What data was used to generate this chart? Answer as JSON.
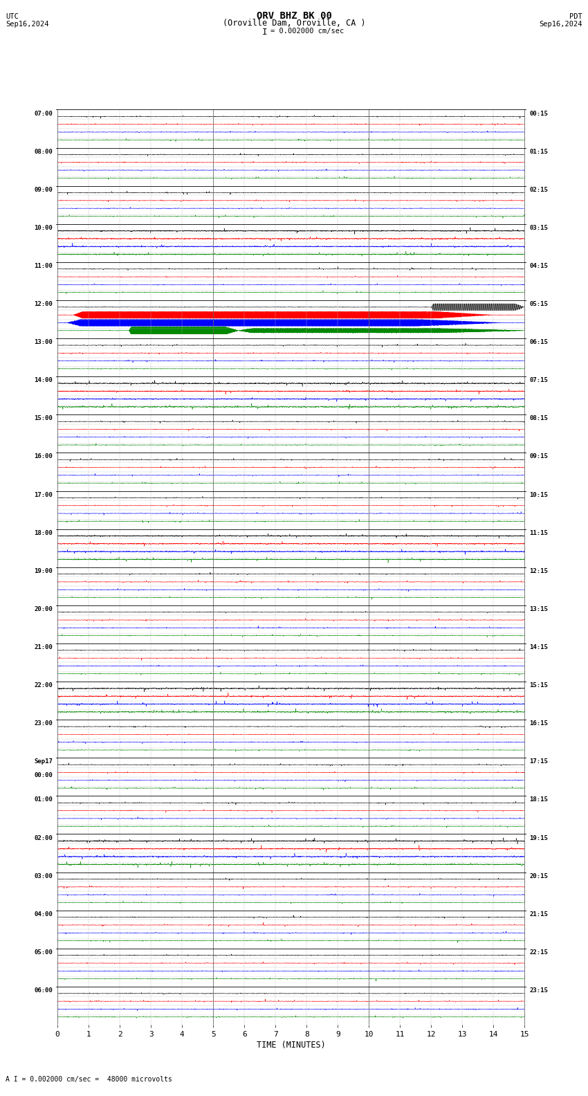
{
  "title_line1": "ORV BHZ BK 00",
  "title_line2": "(Oroville Dam, Oroville, CA )",
  "scale_text": "= 0.002000 cm/sec",
  "footer_text": "A I = 0.002000 cm/sec =  48000 microvolts",
  "utc_label": "UTC",
  "utc_date": "Sep16,2024",
  "pdt_label": "PDT",
  "pdt_date": "Sep16,2024",
  "xlabel": "TIME (MINUTES)",
  "left_times": [
    "07:00",
    "08:00",
    "09:00",
    "10:00",
    "11:00",
    "12:00",
    "13:00",
    "14:00",
    "15:00",
    "16:00",
    "17:00",
    "18:00",
    "19:00",
    "20:00",
    "21:00",
    "22:00",
    "23:00",
    "Sep17\n00:00",
    "01:00",
    "02:00",
    "03:00",
    "04:00",
    "05:00",
    "06:00"
  ],
  "right_times": [
    "00:15",
    "01:15",
    "02:15",
    "03:15",
    "04:15",
    "05:15",
    "06:15",
    "07:15",
    "08:15",
    "09:15",
    "10:15",
    "11:15",
    "12:15",
    "13:15",
    "14:15",
    "15:15",
    "16:15",
    "17:15",
    "18:15",
    "19:15",
    "20:15",
    "21:15",
    "22:15",
    "23:15"
  ],
  "num_rows": 24,
  "minutes_per_row": 15,
  "bg_color": "#ffffff",
  "trace_colors": [
    "#000000",
    "#ff0000",
    "#0000ff",
    "#008800"
  ],
  "noise_amp_small": 0.006,
  "noise_amp_medium": 0.012,
  "event_row": 5,
  "sub_offsets": [
    0.82,
    0.615,
    0.41,
    0.205
  ]
}
